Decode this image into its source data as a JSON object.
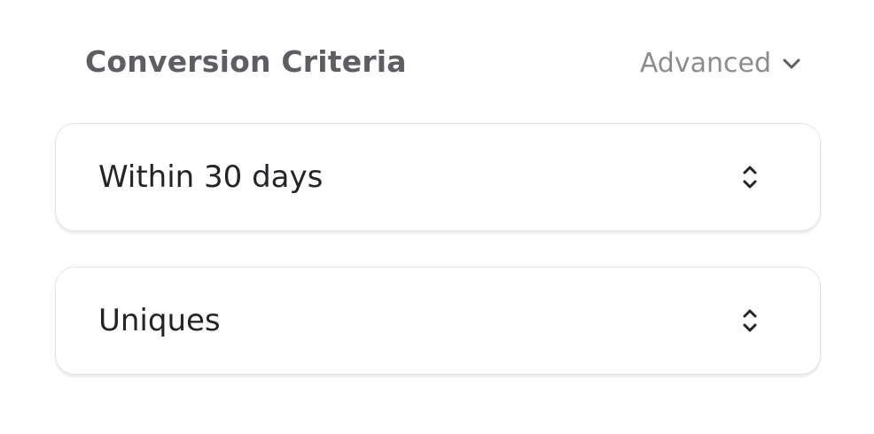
{
  "section": {
    "title": "Conversion Criteria",
    "advanced_label": "Advanced"
  },
  "selects": [
    {
      "value": "Within 30 days",
      "icon": "chevron-up-down-icon"
    },
    {
      "value": "Uniques",
      "icon": "chevron-up-down-icon"
    }
  ]
}
